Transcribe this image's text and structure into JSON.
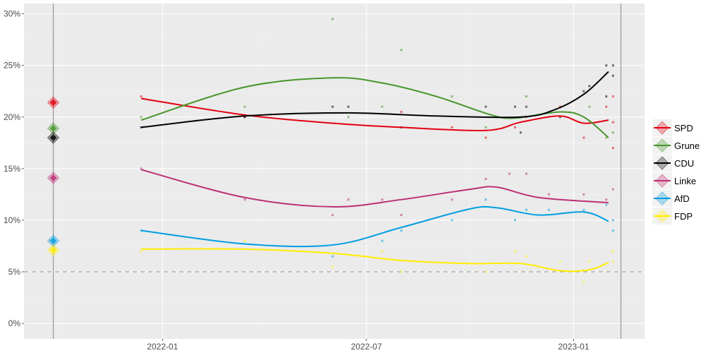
{
  "chart_data": {
    "type": "line",
    "title": "",
    "xlabel": "",
    "ylabel": "",
    "ylim": [
      -1.5,
      31
    ],
    "xlim": [
      "2021-08-31",
      "2023-03-05"
    ],
    "grid": true,
    "legend_placement": "right",
    "y_ticks": [
      "0%",
      "5%",
      "10%",
      "15%",
      "20%",
      "25%",
      "30%"
    ],
    "y_tick_values": [
      0,
      5,
      10,
      15,
      20,
      25,
      30
    ],
    "x_ticks": [
      {
        "label": "2022-01",
        "date": "2022-01-01"
      },
      {
        "label": "2022-07",
        "date": "2022-07-01"
      },
      {
        "label": "2023-01",
        "date": "2023-01-01"
      }
    ],
    "threshold": 5,
    "vertical_lines": [
      "2021-09-26",
      "2023-02-12"
    ],
    "series": [
      {
        "name": "SPD",
        "color": "#e3000f",
        "election_result": 21.4,
        "trend": [
          [
            "2021-12-13",
            21.8
          ],
          [
            "2022-03-15",
            20.2
          ],
          [
            "2022-06-01",
            19.4
          ],
          [
            "2022-08-01",
            19.0
          ],
          [
            "2022-10-15",
            18.7
          ],
          [
            "2022-11-15",
            19.5
          ],
          [
            "2022-12-20",
            20.1
          ],
          [
            "2023-01-10",
            19.4
          ],
          [
            "2023-02-01",
            19.7
          ]
        ],
        "polls": [
          [
            "2021-12-13",
            22
          ],
          [
            "2022-03-15",
            20
          ],
          [
            "2022-08-01",
            20.5
          ],
          [
            "2022-09-15",
            19
          ],
          [
            "2022-10-15",
            18
          ],
          [
            "2022-11-10",
            19
          ],
          [
            "2022-11-20",
            20
          ],
          [
            "2022-12-20",
            21
          ],
          [
            "2023-01-10",
            18
          ],
          [
            "2023-01-30",
            21
          ],
          [
            "2023-02-05",
            22
          ],
          [
            "2023-02-05",
            19.5
          ],
          [
            "2023-02-05",
            17
          ]
        ]
      },
      {
        "name": "Grune",
        "color": "#46962b",
        "election_result": 18.9,
        "trend": [
          [
            "2021-12-13",
            19.7
          ],
          [
            "2022-03-15",
            22.9
          ],
          [
            "2022-06-01",
            23.8
          ],
          [
            "2022-07-15",
            23.3
          ],
          [
            "2022-09-01",
            22.0
          ],
          [
            "2022-10-20",
            20.2
          ],
          [
            "2022-11-10",
            19.9
          ],
          [
            "2022-12-20",
            20.5
          ],
          [
            "2023-01-10",
            20.0
          ],
          [
            "2023-02-01",
            18.0
          ]
        ],
        "polls": [
          [
            "2021-12-13",
            20
          ],
          [
            "2022-03-15",
            21
          ],
          [
            "2022-06-01",
            29.5
          ],
          [
            "2022-06-15",
            20
          ],
          [
            "2022-07-15",
            21
          ],
          [
            "2022-08-01",
            26.5
          ],
          [
            "2022-09-15",
            22
          ],
          [
            "2022-10-15",
            19
          ],
          [
            "2022-11-20",
            22
          ],
          [
            "2023-01-15",
            21
          ],
          [
            "2023-01-30",
            18
          ],
          [
            "2023-02-05",
            18.5
          ]
        ]
      },
      {
        "name": "CDU",
        "color": "#000000",
        "election_result": 18.0,
        "trend": [
          [
            "2021-12-13",
            19.0
          ],
          [
            "2022-03-15",
            20.1
          ],
          [
            "2022-06-15",
            20.4
          ],
          [
            "2022-09-01",
            20.1
          ],
          [
            "2022-11-15",
            20.0
          ],
          [
            "2022-12-15",
            20.7
          ],
          [
            "2023-01-10",
            22.2
          ],
          [
            "2023-02-01",
            24.4
          ]
        ],
        "polls": [
          [
            "2021-12-13",
            19
          ],
          [
            "2022-03-15",
            20
          ],
          [
            "2022-06-01",
            21
          ],
          [
            "2022-06-15",
            21
          ],
          [
            "2022-08-01",
            19
          ],
          [
            "2022-10-15",
            21
          ],
          [
            "2022-11-10",
            21
          ],
          [
            "2022-11-15",
            18.5
          ],
          [
            "2022-11-20",
            21
          ],
          [
            "2022-12-20",
            20
          ],
          [
            "2023-01-10",
            22.5
          ],
          [
            "2023-01-15",
            23
          ],
          [
            "2023-01-30",
            25
          ],
          [
            "2023-02-05",
            25
          ],
          [
            "2023-02-05",
            24
          ],
          [
            "2023-01-30",
            22
          ]
        ]
      },
      {
        "name": "Linke",
        "color": "#be3075",
        "election_result": 14.1,
        "trend": [
          [
            "2021-12-13",
            14.9
          ],
          [
            "2022-03-15",
            12.2
          ],
          [
            "2022-06-01",
            11.3
          ],
          [
            "2022-08-01",
            12.0
          ],
          [
            "2022-10-01",
            13.0
          ],
          [
            "2022-10-25",
            13.2
          ],
          [
            "2022-12-01",
            12.2
          ],
          [
            "2023-02-01",
            11.7
          ]
        ],
        "polls": [
          [
            "2021-12-13",
            15
          ],
          [
            "2022-03-15",
            12
          ],
          [
            "2022-06-01",
            10.5
          ],
          [
            "2022-06-15",
            12
          ],
          [
            "2022-07-15",
            12
          ],
          [
            "2022-08-01",
            10.5
          ],
          [
            "2022-09-15",
            12
          ],
          [
            "2022-10-15",
            14
          ],
          [
            "2022-11-05",
            14.5
          ],
          [
            "2022-11-20",
            14.5
          ],
          [
            "2022-12-10",
            12.5
          ],
          [
            "2023-01-10",
            12.5
          ],
          [
            "2023-01-30",
            12
          ],
          [
            "2023-02-05",
            13
          ]
        ]
      },
      {
        "name": "AfD",
        "color": "#009ee0",
        "election_result": 8.0,
        "trend": [
          [
            "2021-12-13",
            9.0
          ],
          [
            "2022-03-15",
            7.7
          ],
          [
            "2022-06-01",
            7.6
          ],
          [
            "2022-08-01",
            9.3
          ],
          [
            "2022-10-01",
            11.1
          ],
          [
            "2022-10-25",
            11.2
          ],
          [
            "2022-12-01",
            10.5
          ],
          [
            "2023-01-10",
            10.8
          ],
          [
            "2023-02-01",
            9.9
          ]
        ],
        "polls": [
          [
            "2021-12-13",
            9
          ],
          [
            "2022-06-01",
            6.5
          ],
          [
            "2022-07-15",
            8
          ],
          [
            "2022-08-01",
            9
          ],
          [
            "2022-09-15",
            10
          ],
          [
            "2022-10-15",
            12
          ],
          [
            "2022-11-10",
            10
          ],
          [
            "2022-11-20",
            11
          ],
          [
            "2022-12-10",
            11
          ],
          [
            "2023-01-10",
            11
          ],
          [
            "2023-01-30",
            11.5
          ],
          [
            "2023-02-05",
            10
          ],
          [
            "2023-02-05",
            9
          ]
        ]
      },
      {
        "name": "FDP",
        "color": "#ffed00",
        "election_result": 7.1,
        "trend": [
          [
            "2021-12-13",
            7.2
          ],
          [
            "2022-03-15",
            7.2
          ],
          [
            "2022-06-01",
            6.8
          ],
          [
            "2022-08-01",
            6.1
          ],
          [
            "2022-10-01",
            5.8
          ],
          [
            "2022-11-15",
            5.8
          ],
          [
            "2022-12-20",
            5.1
          ],
          [
            "2023-01-15",
            5.2
          ],
          [
            "2023-02-01",
            5.9
          ]
        ],
        "polls": [
          [
            "2021-12-13",
            7
          ],
          [
            "2022-03-15",
            8
          ],
          [
            "2022-06-01",
            5.5
          ],
          [
            "2022-07-15",
            7
          ],
          [
            "2022-08-01",
            5
          ],
          [
            "2022-10-15",
            5
          ],
          [
            "2022-11-10",
            7
          ],
          [
            "2022-11-20",
            6.5
          ],
          [
            "2022-12-20",
            6
          ],
          [
            "2023-01-10",
            4
          ],
          [
            "2023-01-15",
            6
          ],
          [
            "2023-02-05",
            6
          ],
          [
            "2023-02-05",
            7
          ]
        ]
      }
    ]
  }
}
